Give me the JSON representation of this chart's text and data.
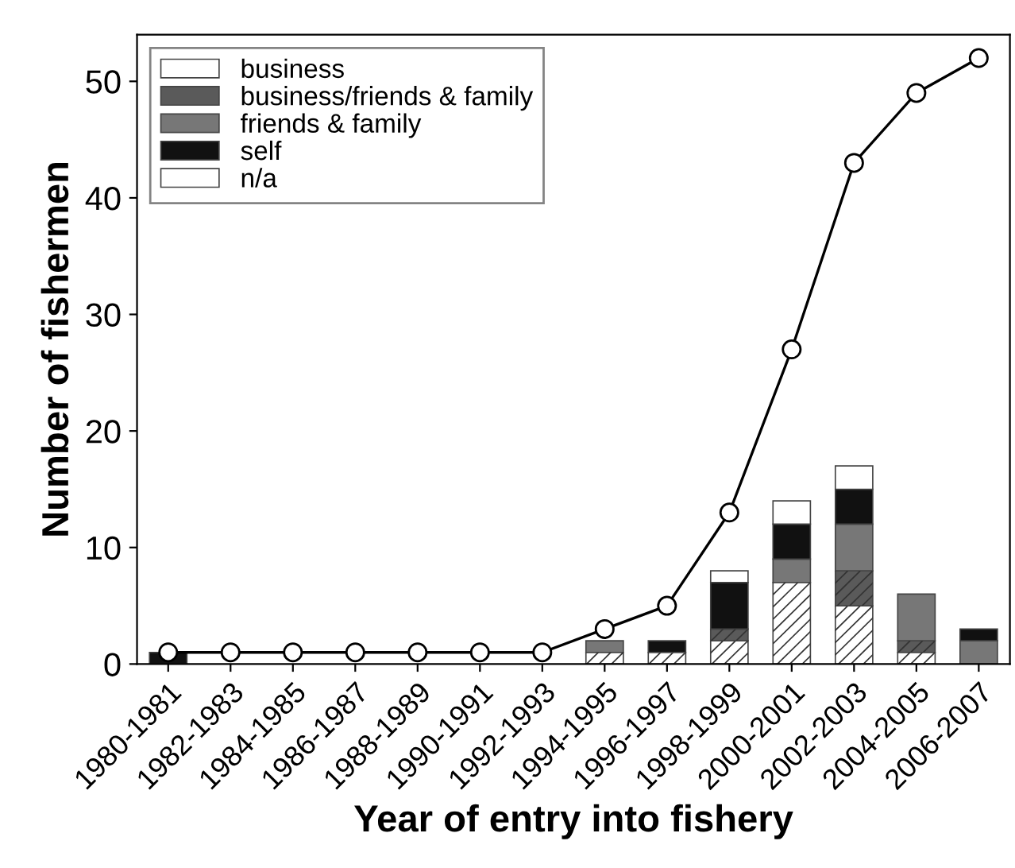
{
  "chart_data": {
    "type": "bar",
    "stacked": true,
    "xlabel": "Year of entry into fishery",
    "ylabel": "Number of fishermen",
    "categories": [
      "1980-1981",
      "1982-1983",
      "1984-1985",
      "1986-1987",
      "1988-1989",
      "1990-1991",
      "1992-1993",
      "1994-1995",
      "1996-1997",
      "1998-1999",
      "2000-2001",
      "2002-2003",
      "2004-2005",
      "2006-2007"
    ],
    "series": [
      {
        "name": "business",
        "color": "#ffffff",
        "values": [
          null,
          null,
          null,
          null,
          null,
          null,
          null,
          1,
          1,
          2,
          7,
          5,
          1,
          null
        ]
      },
      {
        "name": "business/friends & family",
        "color": "#5a5a5a",
        "values": [
          null,
          null,
          null,
          null,
          null,
          null,
          null,
          null,
          null,
          1,
          null,
          3,
          1,
          null
        ]
      },
      {
        "name": "friends & family",
        "color": "#777777",
        "values": [
          null,
          null,
          null,
          null,
          null,
          null,
          null,
          1,
          null,
          null,
          2,
          4,
          4,
          2
        ]
      },
      {
        "name": "self",
        "color": "#111111",
        "values": [
          1,
          null,
          null,
          null,
          null,
          null,
          null,
          null,
          1,
          4,
          3,
          3,
          null,
          1
        ]
      },
      {
        "name": "n/a",
        "color": "#ffffff",
        "values": [
          null,
          null,
          null,
          null,
          null,
          null,
          null,
          null,
          null,
          1,
          2,
          2,
          null,
          null
        ]
      },
      {
        "type": "line",
        "color": "#000000",
        "marker": "circle",
        "values": [
          1,
          1,
          1,
          1,
          1,
          1,
          1,
          3,
          5,
          13,
          27,
          43,
          49,
          52
        ]
      }
    ],
    "ylim": [
      0,
      54
    ],
    "yticks": [
      0,
      10,
      20,
      30,
      40,
      50
    ],
    "grid": false,
    "legend": "top left"
  }
}
